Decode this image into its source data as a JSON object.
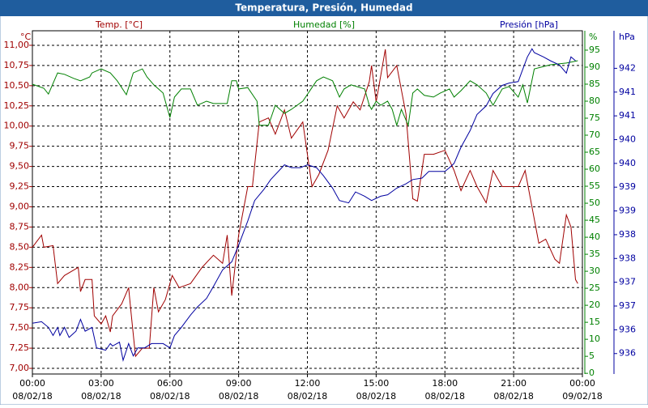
{
  "chart_data": {
    "type": "line",
    "title": "Temperatura, Presión, Humedad",
    "xlim": [
      0,
      24
    ],
    "xticks": [
      {
        "value": 0,
        "label": "00:00",
        "date": "08/02/18"
      },
      {
        "value": 3,
        "label": "03:00",
        "date": "08/02/18"
      },
      {
        "value": 6,
        "label": "06:00",
        "date": "08/02/18"
      },
      {
        "value": 9,
        "label": "09:00",
        "date": "08/02/18"
      },
      {
        "value": 12,
        "label": "12:00",
        "date": "08/02/18"
      },
      {
        "value": 15,
        "label": "15:00",
        "date": "08/02/18"
      },
      {
        "value": 18,
        "label": "18:00",
        "date": "08/02/18"
      },
      {
        "value": 21,
        "label": "21:00",
        "date": "08/02/18"
      },
      {
        "value": 24,
        "label": "00:00",
        "date": "09/02/18"
      }
    ],
    "grid": true,
    "axes": [
      {
        "title": "Temp. [°C]",
        "unit": "°C",
        "color": "#a00000",
        "side": "left",
        "lim": [
          6.93,
          11.18
        ],
        "ticks": [
          {
            "value": 7,
            "label": "7,00"
          },
          {
            "value": 7.25,
            "label": "7,25"
          },
          {
            "value": 7.5,
            "label": "7,50"
          },
          {
            "value": 7.75,
            "label": "7,75"
          },
          {
            "value": 8,
            "label": "8,00"
          },
          {
            "value": 8.25,
            "label": "8,25"
          },
          {
            "value": 8.5,
            "label": "8,50"
          },
          {
            "value": 8.75,
            "label": "8,75"
          },
          {
            "value": 9,
            "label": "9,00"
          },
          {
            "value": 9.25,
            "label": "9,25"
          },
          {
            "value": 9.5,
            "label": "9,50"
          },
          {
            "value": 9.75,
            "label": "9,75"
          },
          {
            "value": 10,
            "label": "10,00"
          },
          {
            "value": 10.25,
            "label": "10,25"
          },
          {
            "value": 10.5,
            "label": "10,50"
          },
          {
            "value": 10.75,
            "label": "10,75"
          },
          {
            "value": 11,
            "label": "11,00"
          }
        ]
      },
      {
        "title": "Humedad [%]",
        "unit": "%",
        "color": "#008000",
        "side": "right",
        "lim": [
          -0.2,
          100.7
        ],
        "ticks": [
          0,
          5,
          10,
          15,
          20,
          25,
          30,
          35,
          40,
          45,
          50,
          55,
          60,
          65,
          70,
          75,
          80,
          85,
          90,
          95
        ]
      },
      {
        "title": "Presión [hPa]",
        "unit": "hPa",
        "color": "#0000a0",
        "side": "right-outer",
        "lim": [
          935.57,
          942.79
        ],
        "ticks": [
          {
            "value": 936,
            "label": "936"
          },
          {
            "value": 936.5,
            "label": "936"
          },
          {
            "value": 937,
            "label": "937"
          },
          {
            "value": 937.5,
            "label": "937"
          },
          {
            "value": 938,
            "label": "938"
          },
          {
            "value": 938.5,
            "label": "938"
          },
          {
            "value": 939,
            "label": "939"
          },
          {
            "value": 939.5,
            "label": "939"
          },
          {
            "value": 940,
            "label": "940"
          },
          {
            "value": 940.5,
            "label": "940"
          },
          {
            "value": 941,
            "label": "941"
          },
          {
            "value": 941.5,
            "label": "941"
          },
          {
            "value": 942,
            "label": "942"
          }
        ]
      }
    ],
    "series": [
      {
        "name": "Temp. [°C]",
        "color": "#a00000",
        "axis": 0,
        "x": [
          0,
          0.4,
          0.5,
          0.9,
          1.1,
          1.4,
          2,
          2.1,
          2.3,
          2.6,
          2.7,
          3,
          3.2,
          3.4,
          3.5,
          3.9,
          4.2,
          4.3,
          4.5,
          4.8,
          5.1,
          5.3,
          5.5,
          5.8,
          6.1,
          6.4,
          6.9,
          7.4,
          7.9,
          8.3,
          8.5,
          8.7,
          9,
          9.4,
          9.6,
          9.9,
          10.3,
          10.6,
          11,
          11.3,
          11.8,
          12.2,
          12.5,
          12.9,
          13.3,
          13.6,
          14,
          14.3,
          14.7,
          14.8,
          15,
          15.4,
          15.5,
          15.9,
          16.3,
          16.6,
          16.8,
          17.1,
          17.5,
          18,
          18.4,
          18.7,
          19.1,
          19.4,
          19.8,
          20.1,
          20.5,
          20.8,
          21.2,
          21.5,
          21.7,
          22.1,
          22.4,
          22.8,
          23,
          23.3,
          23.5,
          23.7,
          23.8
        ],
        "values": [
          8.5,
          8.65,
          8.5,
          8.52,
          8.05,
          8.15,
          8.25,
          7.95,
          8.1,
          8.1,
          7.65,
          7.55,
          7.65,
          7.45,
          7.65,
          7.8,
          8,
          7.7,
          7.15,
          7.25,
          7.25,
          8,
          7.7,
          7.85,
          8.15,
          8,
          8.05,
          8.25,
          8.4,
          8.3,
          8.65,
          7.9,
          8.65,
          9.25,
          9.25,
          10.05,
          10.1,
          9.9,
          10.2,
          9.85,
          10.05,
          9.25,
          9.4,
          9.7,
          10.25,
          10.1,
          10.3,
          10.2,
          10.55,
          10.75,
          10.3,
          10.95,
          10.6,
          10.75,
          10.15,
          9.1,
          9.07,
          9.65,
          9.65,
          9.7,
          9.45,
          9.2,
          9.45,
          9.25,
          9.05,
          9.45,
          9.25,
          9.25,
          9.25,
          9.45,
          9.15,
          8.55,
          8.6,
          8.35,
          8.3,
          8.9,
          8.75,
          8.1,
          8.05
        ]
      },
      {
        "name": "Humedad [%]",
        "color": "#008000",
        "axis": 1,
        "x": [
          0,
          0.5,
          0.7,
          1.1,
          1.4,
          1.8,
          2.1,
          2.5,
          2.6,
          3,
          3.4,
          3.7,
          4.1,
          4.4,
          4.8,
          5,
          5.3,
          5.7,
          5.8,
          6,
          6.2,
          6.5,
          6.9,
          7.2,
          7.6,
          7.9,
          8.5,
          8.7,
          8.9,
          9,
          9.4,
          9.8,
          9.9,
          10.3,
          10.6,
          11,
          11.3,
          11.8,
          12.4,
          12.7,
          13.1,
          13.4,
          13.6,
          13.9,
          14.5,
          14.7,
          14.8,
          15,
          15.2,
          15.5,
          15.7,
          15.9,
          16.1,
          16.4,
          16.6,
          16.8,
          17.1,
          17.5,
          17.8,
          18.2,
          18.4,
          18.7,
          19.1,
          19.4,
          19.8,
          20,
          20.1,
          20.5,
          20.8,
          21.2,
          21.4,
          21.6,
          21.9,
          22.6,
          23.3,
          23.8
        ],
        "values": [
          85,
          83.8,
          82.1,
          88.3,
          87.9,
          86.7,
          86,
          87.1,
          88.3,
          89.5,
          88.3,
          86,
          81.9,
          88.3,
          89.5,
          87.1,
          84.8,
          82.4,
          80,
          75.2,
          81.2,
          83.6,
          83.6,
          78.8,
          80,
          79.3,
          79.3,
          86,
          86,
          83.6,
          84,
          80,
          72.9,
          72.9,
          78.8,
          76.4,
          77.6,
          80,
          86,
          87.1,
          86,
          81.2,
          83.6,
          84.8,
          83.6,
          78.8,
          77.6,
          80,
          78.8,
          80,
          77.6,
          72.9,
          77.6,
          72.9,
          82.4,
          83.6,
          81.7,
          81.2,
          82.4,
          83.6,
          81.2,
          83.1,
          86,
          84.8,
          82.4,
          80,
          78.8,
          83.6,
          84.3,
          81.2,
          84.8,
          79.5,
          89.5,
          90.7,
          91.2,
          91.9
        ]
      },
      {
        "name": "Presión [hPa]",
        "color": "#0000a0",
        "axis": 2,
        "x": [
          0,
          0.4,
          0.7,
          0.9,
          1.1,
          1.2,
          1.4,
          1.6,
          1.9,
          2.1,
          2.3,
          2.6,
          2.8,
          3.2,
          3.4,
          3.5,
          3.8,
          3.96,
          4.2,
          4.4,
          4.6,
          4.9,
          5.2,
          5.7,
          6,
          6.2,
          6.5,
          6.9,
          7.2,
          7.6,
          7.9,
          8.3,
          8.7,
          9,
          9.4,
          9.7,
          10.1,
          10.4,
          11,
          11.3,
          11.7,
          12,
          12.4,
          12.7,
          13.1,
          13.4,
          13.8,
          14.1,
          14.5,
          14.8,
          15.2,
          15.5,
          15.9,
          16.3,
          16.6,
          17,
          17.3,
          17.7,
          18,
          18.2,
          18.4,
          18.7,
          19.1,
          19.4,
          19.8,
          20.1,
          20.5,
          20.8,
          21.2,
          21.4,
          21.6,
          21.8,
          21.9,
          22.3,
          22.6,
          23,
          23.3,
          23.5,
          23.7
        ],
        "values": [
          936.64,
          936.67,
          936.55,
          936.38,
          936.55,
          936.38,
          936.55,
          936.34,
          936.47,
          936.72,
          936.47,
          936.55,
          936.12,
          936.07,
          936.21,
          936.16,
          936.24,
          935.86,
          936.21,
          935.95,
          936.12,
          936.12,
          936.21,
          936.21,
          936.12,
          936.38,
          936.55,
          936.81,
          936.98,
          937.16,
          937.41,
          937.76,
          937.93,
          938.28,
          938.79,
          939.22,
          939.45,
          939.66,
          939.97,
          939.91,
          939.91,
          939.97,
          939.91,
          939.74,
          939.48,
          939.22,
          939.17,
          939.4,
          939.31,
          939.22,
          939.31,
          939.34,
          939.48,
          939.57,
          939.66,
          939.69,
          939.83,
          939.83,
          939.83,
          939.91,
          940,
          940.34,
          940.69,
          941.03,
          941.21,
          941.47,
          941.64,
          941.69,
          941.72,
          941.98,
          942.24,
          942.41,
          942.33,
          942.24,
          942.16,
          942.07,
          941.9,
          942.24,
          942.16
        ]
      }
    ]
  }
}
